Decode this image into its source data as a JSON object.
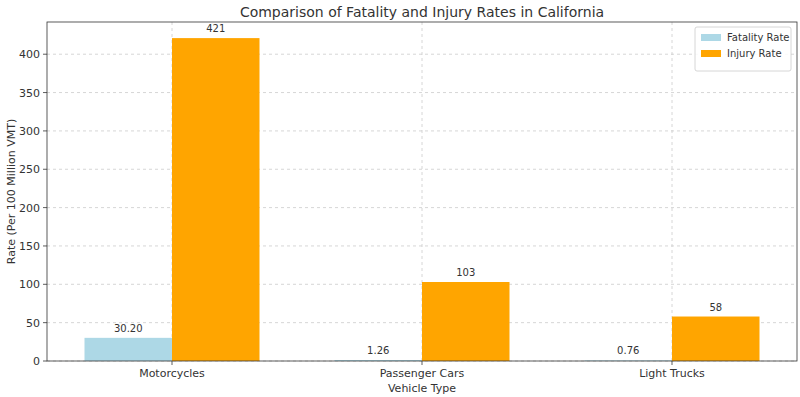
{
  "chart_data": {
    "type": "bar",
    "title": "Comparison of Fatality and Injury Rates in California",
    "x_label": "Vehicle Type",
    "y_label": "Rate (Per 100 Million VMT)",
    "categories": [
      "Motorcycles",
      "Passenger Cars",
      "Light Trucks"
    ],
    "series": [
      {
        "name": "Fatality Rate",
        "color": "#add8e6",
        "values": [
          30.2,
          1.26,
          0.76
        ],
        "value_labels": [
          "30.20",
          "1.26",
          "0.76"
        ]
      },
      {
        "name": "Injury Rate",
        "color": "#ffa500",
        "values": [
          421,
          103,
          58
        ]
      }
    ],
    "ylim": [
      0,
      442
    ],
    "yticks": [
      0,
      50,
      100,
      150,
      200,
      250,
      300,
      350,
      400
    ],
    "grid": true,
    "legend": "upper right",
    "data_labels": true
  }
}
